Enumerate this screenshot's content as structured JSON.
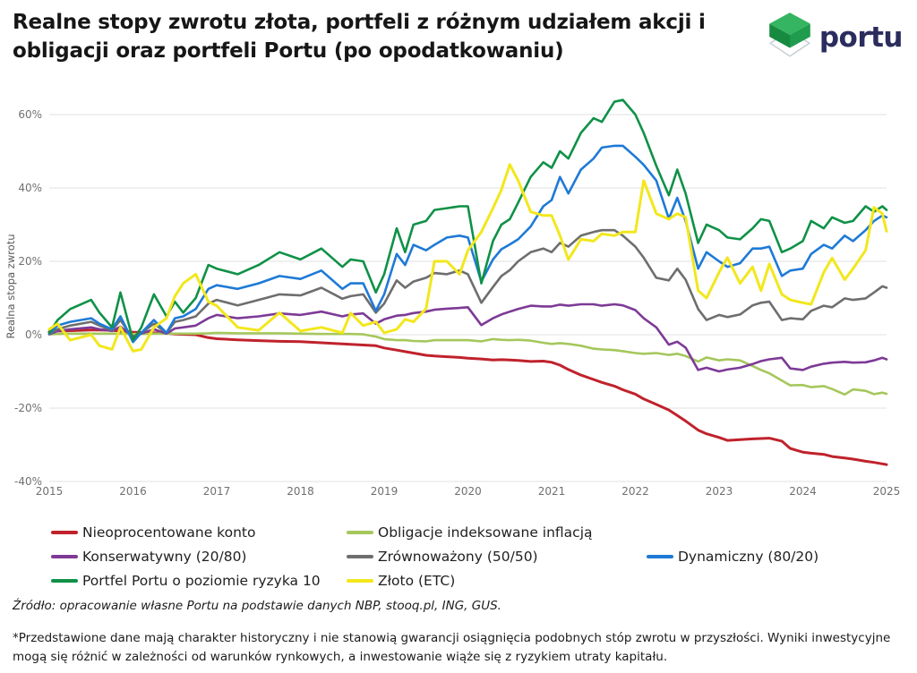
{
  "header": {
    "title_line1": "Realne stopy zwrotu złota, portfeli z różnym udziałem akcji i",
    "title_line2": "obligacji oraz portfeli Portu (po opodatkowaniu)",
    "logo_text": "portu",
    "logo_icon": "portu-cube-icon",
    "logo_colors": {
      "cube_top": "#35b561",
      "cube_left": "#178a40",
      "cube_right": "#1f9c4d",
      "diamond_outline": "#c3ccd2",
      "wordmark": "#2b2c5e"
    }
  },
  "footer": {
    "source": "Źródło: opracowanie własne Portu na podstawie danych NBP, stooq.pl, ING, GUS.",
    "disclaimer": "*Przedstawione dane mają charakter historyczny i nie stanowią gwarancji osiągnięcia podobnych stóp zwrotu w przyszłości. Wyniki inwestycyjne mogą się różnić w zależności od warunków rynkowych, a inwestowanie wiąże się z ryzykiem utraty kapitału."
  },
  "chart_data": {
    "type": "line",
    "title": "Realne stopy zwrotu złota, portfeli z różnym udziałem akcji i obligacji oraz portfeli Portu (po opodatkowaniu)",
    "xlabel": "",
    "ylabel": "Realna stopa zwrotu",
    "xlim": [
      2015,
      2025
    ],
    "ylim": [
      -40,
      60
    ],
    "grid": true,
    "legend_position": "bottom",
    "y_ticks": [
      {
        "v": 60,
        "label": "60%"
      },
      {
        "v": 40,
        "label": "40%"
      },
      {
        "v": 20,
        "label": "20%"
      },
      {
        "v": 0,
        "label": "0%"
      },
      {
        "v": -20,
        "label": "-20%"
      },
      {
        "v": -40,
        "label": "-40%"
      }
    ],
    "x_ticks": [
      {
        "v": 2015,
        "label": "2015"
      },
      {
        "v": 2016,
        "label": "2016"
      },
      {
        "v": 2017,
        "label": "2017"
      },
      {
        "v": 2018,
        "label": "2018"
      },
      {
        "v": 2019,
        "label": "2019"
      },
      {
        "v": 2020,
        "label": "2020"
      },
      {
        "v": 2021,
        "label": "2021"
      },
      {
        "v": 2022,
        "label": "2022"
      },
      {
        "v": 2023,
        "label": "2023"
      },
      {
        "v": 2024,
        "label": "2024"
      },
      {
        "v": 2025,
        "label": "2025"
      }
    ],
    "x": [
      2015,
      2015.1,
      2015.25,
      2015.5,
      2015.6,
      2015.75,
      2015.85,
      2016,
      2016.1,
      2016.25,
      2016.4,
      2016.5,
      2016.6,
      2016.75,
      2016.9,
      2017,
      2017.25,
      2017.5,
      2017.75,
      2018,
      2018.25,
      2018.5,
      2018.6,
      2018.75,
      2018.9,
      2019,
      2019.15,
      2019.25,
      2019.35,
      2019.5,
      2019.6,
      2019.75,
      2019.9,
      2020,
      2020.16,
      2020.3,
      2020.4,
      2020.5,
      2020.6,
      2020.75,
      2020.9,
      2021,
      2021.1,
      2021.2,
      2021.35,
      2021.5,
      2021.6,
      2021.75,
      2021.85,
      2022,
      2022.1,
      2022.25,
      2022.4,
      2022.5,
      2022.6,
      2022.75,
      2022.85,
      2023,
      2023.1,
      2023.25,
      2023.4,
      2023.5,
      2023.6,
      2023.75,
      2023.85,
      2024,
      2024.1,
      2024.25,
      2024.35,
      2024.5,
      2024.6,
      2024.75,
      2024.85,
      2024.95,
      2025
    ],
    "series": [
      {
        "label": "Nieoprocentowane konto",
        "color": "#c0222c",
        "values": [
          0.8,
          1,
          1.1,
          1.3,
          1.3,
          1.2,
          1,
          0.7,
          0.6,
          0.5,
          0.4,
          0.2,
          0.1,
          0,
          -0.8,
          -1.1,
          -1.4,
          -1.6,
          -1.8,
          -1.9,
          -2.2,
          -2.5,
          -2.6,
          -2.8,
          -3,
          -3.6,
          -4.2,
          -4.6,
          -5,
          -5.6,
          -5.8,
          -6,
          -6.2,
          -6.4,
          -6.6,
          -6.9,
          -6.8,
          -6.9,
          -7,
          -7.3,
          -7.2,
          -7.5,
          -8.3,
          -9.5,
          -11,
          -12.2,
          -13,
          -14,
          -15,
          -16.2,
          -17.5,
          -19,
          -20.5,
          -22,
          -23.5,
          -26,
          -27,
          -28,
          -28.8,
          -28.6,
          -28.4,
          -28.3,
          -28.2,
          -29,
          -31,
          -32,
          -32.3,
          -32.6,
          -33.2,
          -33.6,
          -33.9,
          -34.5,
          -34.8,
          -35.2,
          -35.4
        ]
      },
      {
        "label": "Obligacje indeksowane inflacją",
        "color": "#a5c75c",
        "values": [
          0.1,
          0.2,
          0.3,
          0.3,
          0.3,
          0.3,
          0.3,
          0.2,
          0.2,
          0.3,
          0.3,
          0.3,
          0.3,
          0.3,
          0.4,
          0.5,
          0.4,
          0.4,
          0.4,
          0.3,
          0.2,
          0.2,
          0.2,
          0.1,
          -0.5,
          -1.2,
          -1.5,
          -1.5,
          -1.7,
          -1.8,
          -1.5,
          -1.5,
          -1.5,
          -1.5,
          -1.8,
          -1.2,
          -1.4,
          -1.5,
          -1.4,
          -1.6,
          -2.2,
          -2.5,
          -2.3,
          -2.5,
          -3,
          -3.8,
          -4,
          -4.2,
          -4.5,
          -5,
          -5.2,
          -5,
          -5.5,
          -5.2,
          -5.8,
          -7.3,
          -6.2,
          -7,
          -6.7,
          -7,
          -8.5,
          -9.6,
          -10.5,
          -12.5,
          -13.8,
          -13.7,
          -14.3,
          -14,
          -14.8,
          -16.3,
          -14.9,
          -15.3,
          -16.2,
          -15.8,
          -16.1
        ]
      },
      {
        "label": "Konserwatywny (20/80)",
        "color": "#7d3a96",
        "values": [
          0.1,
          1,
          1.5,
          2,
          1.5,
          1,
          2.2,
          -0.5,
          0.3,
          1.5,
          0.3,
          1.7,
          2,
          2.5,
          4.5,
          5.4,
          4.5,
          5,
          5.8,
          5.4,
          6.3,
          5,
          5.5,
          5.8,
          3,
          4.2,
          5.2,
          5.4,
          5.9,
          6.3,
          6.8,
          7.1,
          7.3,
          7.5,
          2.6,
          4.5,
          5.5,
          6.3,
          7,
          7.9,
          7.7,
          7.7,
          8.2,
          7.9,
          8.3,
          8.3,
          7.9,
          8.3,
          8,
          6.7,
          4.5,
          2,
          -2.7,
          -1.9,
          -3.5,
          -9.6,
          -9,
          -10,
          -9.5,
          -9,
          -8,
          -7.2,
          -6.7,
          -6.3,
          -9.2,
          -9.6,
          -8.7,
          -7.9,
          -7.6,
          -7.4,
          -7.6,
          -7.5,
          -7,
          -6.3,
          -6.7
        ]
      },
      {
        "label": "Zrównoważony (50/50)",
        "color": "#6e6e6e",
        "values": [
          0.2,
          1.5,
          2.5,
          3.5,
          2.5,
          1.2,
          4,
          -1,
          0.5,
          3,
          0.5,
          3.5,
          4,
          5,
          8.5,
          9.5,
          8,
          9.5,
          11,
          10.7,
          12.8,
          9.8,
          10.5,
          11,
          6,
          8.5,
          14.8,
          12.8,
          14.5,
          15.5,
          16.8,
          16.5,
          17.5,
          16.5,
          8.7,
          13,
          16,
          17.6,
          20,
          22.5,
          23.5,
          22.5,
          25,
          24,
          27,
          28,
          28.5,
          28.5,
          27,
          24,
          21,
          15.5,
          14.8,
          18,
          15,
          7,
          4,
          5.4,
          4.8,
          5.5,
          8,
          8.7,
          9,
          4,
          4.5,
          4.2,
          6.5,
          7.9,
          7.5,
          9.9,
          9.5,
          9.9,
          11.5,
          13.2,
          12.8
        ]
      },
      {
        "label": "Dynamiczny (80/20)",
        "color": "#1e7ad6",
        "values": [
          0.3,
          2.5,
          3.5,
          4.5,
          3,
          1.5,
          5,
          -2,
          0.5,
          4,
          0.5,
          4.5,
          5,
          7,
          12.5,
          13.5,
          12.5,
          14,
          16,
          15.2,
          17.5,
          12.5,
          14,
          14,
          6.5,
          11,
          22,
          19,
          24.5,
          23,
          24.5,
          26.5,
          27,
          26.5,
          14.5,
          20.5,
          23.3,
          24.6,
          26,
          29.5,
          35,
          36.7,
          43,
          38.5,
          45,
          48,
          51,
          51.5,
          51.5,
          48.5,
          46.3,
          42,
          31.6,
          37.3,
          31,
          18,
          22.5,
          20,
          18.5,
          19.5,
          23.5,
          23.5,
          24,
          16,
          17.5,
          18,
          22,
          24.5,
          23.5,
          27,
          25.5,
          28.5,
          31,
          32.5,
          32
        ]
      },
      {
        "label": "Portfel Portu o poziomie ryzyka 10",
        "color": "#0f9147",
        "values": [
          0.5,
          4,
          7,
          9.5,
          6,
          2,
          11.5,
          -1.5,
          2,
          11,
          5,
          9,
          6,
          10,
          19,
          18,
          16.5,
          19,
          22.5,
          20.5,
          23.5,
          18.5,
          20.5,
          20,
          11.5,
          16.5,
          29,
          22.5,
          30,
          31,
          34,
          34.5,
          35,
          35,
          14,
          25.5,
          30,
          31.5,
          36,
          43,
          47,
          45.5,
          50,
          48,
          55,
          59,
          58,
          63.5,
          64,
          60,
          55,
          46,
          38,
          45,
          38.5,
          25,
          30,
          28.5,
          26.5,
          26,
          29,
          31.5,
          31,
          22.5,
          23.5,
          25.5,
          31,
          29,
          32,
          30.5,
          31,
          35,
          33.5,
          35,
          34
        ]
      },
      {
        "label": "Złoto (ETC)",
        "color": "#f2e71c",
        "values": [
          1.5,
          3,
          -1.5,
          0,
          -3,
          -4,
          2,
          -4.5,
          -4,
          2,
          4.5,
          10.5,
          14,
          16.5,
          9,
          7.9,
          2,
          1.2,
          6,
          1,
          2,
          0.5,
          5.9,
          2.5,
          3.5,
          0.5,
          1.5,
          4.2,
          3.5,
          7.1,
          20,
          20,
          16.5,
          23,
          28,
          34.5,
          39.5,
          46.4,
          42,
          33.5,
          32.5,
          32.5,
          27,
          20.5,
          26,
          25.5,
          27.5,
          27,
          28,
          28,
          42,
          33,
          31.5,
          33,
          32,
          12,
          10,
          17,
          21,
          14,
          18.5,
          12,
          19.3,
          11,
          9.5,
          8.7,
          8.3,
          17,
          20.9,
          15,
          18,
          23,
          34.7,
          33,
          28.2
        ]
      }
    ]
  },
  "style": {
    "gridline_color": "#e2e2e2",
    "tick_label_color": "#707070",
    "axis_title_color": "#5a5a5a"
  }
}
